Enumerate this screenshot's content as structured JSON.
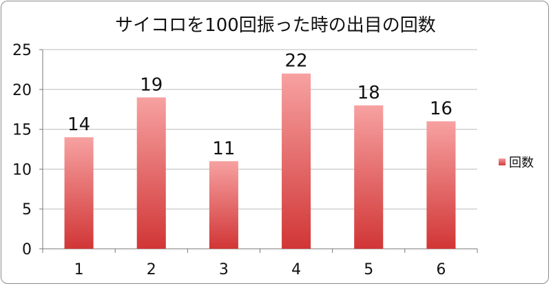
{
  "chart_data": {
    "type": "bar",
    "title": "サイコロを100回振った時の出目の回数",
    "categories": [
      "1",
      "2",
      "3",
      "4",
      "5",
      "6"
    ],
    "series": [
      {
        "name": "回数",
        "values": [
          14,
          19,
          11,
          22,
          18,
          16
        ]
      }
    ],
    "ylim": [
      0,
      25
    ],
    "yticks": [
      0,
      5,
      10,
      15,
      20,
      25
    ],
    "grid": true,
    "data_labels": true,
    "legend_position": "right",
    "colors": {
      "bar_top": "#f7a1a1",
      "bar_bottom": "#d13636",
      "grid": "#bbbbbb"
    }
  }
}
